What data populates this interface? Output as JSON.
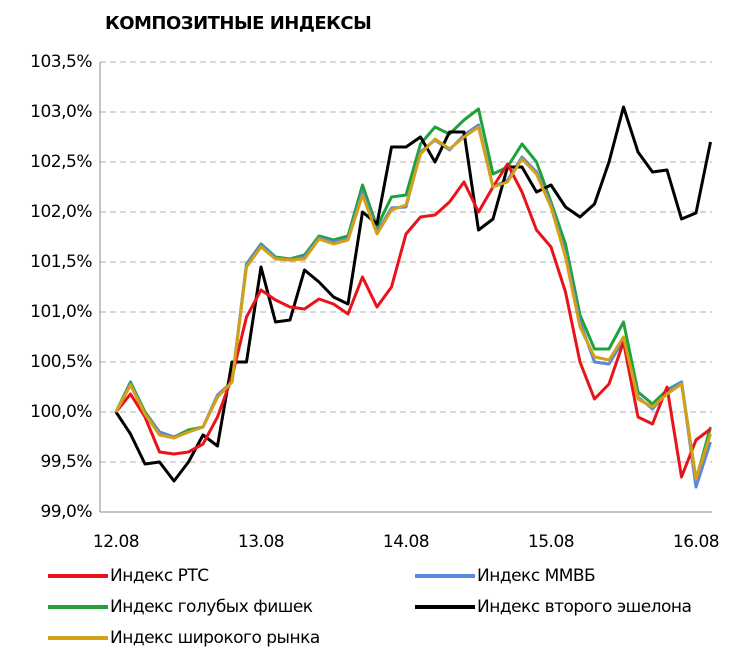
{
  "chart_data": {
    "type": "line",
    "title": "КОМПОЗИТНЫЕ  ИНДЕКСЫ",
    "categories": [
      "12.08",
      null,
      null,
      null,
      null,
      null,
      null,
      null,
      null,
      null,
      "13.08",
      null,
      null,
      null,
      null,
      null,
      null,
      null,
      null,
      null,
      "14.08",
      null,
      null,
      null,
      null,
      null,
      null,
      null,
      null,
      null,
      "15.08",
      null,
      null,
      null,
      null,
      null,
      null,
      null,
      null,
      null,
      "16.08",
      null
    ],
    "ylim": [
      99.0,
      103.5
    ],
    "yticks": [
      {
        "value": 99.0,
        "label": "99,0%"
      },
      {
        "value": 99.5,
        "label": "99,5%"
      },
      {
        "value": 100.0,
        "label": "100,0%"
      },
      {
        "value": 100.5,
        "label": "100,5%"
      },
      {
        "value": 101.0,
        "label": "101,0%"
      },
      {
        "value": 101.5,
        "label": "101,5%"
      },
      {
        "value": 102.0,
        "label": "102,0%"
      },
      {
        "value": 102.5,
        "label": "102,5%"
      },
      {
        "value": 103.0,
        "label": "103,0%"
      },
      {
        "value": 103.5,
        "label": "103,5%"
      }
    ],
    "grid": true,
    "legend": "bottom",
    "series": [
      {
        "name": "Индекс РТС",
        "color": "#e8141c",
        "values": [
          100.0,
          100.18,
          99.95,
          99.6,
          99.58,
          99.6,
          99.68,
          99.95,
          100.35,
          100.95,
          101.22,
          101.12,
          101.05,
          101.03,
          101.13,
          101.08,
          100.98,
          101.35,
          101.05,
          101.25,
          101.78,
          101.95,
          101.97,
          102.1,
          102.3,
          102.0,
          102.25,
          102.48,
          102.2,
          101.82,
          101.65,
          101.2,
          100.5,
          100.13,
          100.28,
          100.7,
          99.95,
          99.88,
          100.25,
          99.35,
          99.72,
          99.83
        ]
      },
      {
        "name": "Индекс ММВБ",
        "color": "#5b87e0",
        "values": [
          100.0,
          100.28,
          99.98,
          99.8,
          99.75,
          99.8,
          99.85,
          100.17,
          100.3,
          101.47,
          101.67,
          101.54,
          101.52,
          101.55,
          101.74,
          101.7,
          101.73,
          102.2,
          101.8,
          102.04,
          102.05,
          102.6,
          102.72,
          102.62,
          102.77,
          102.87,
          102.25,
          102.32,
          102.55,
          102.4,
          102.07,
          101.58,
          100.9,
          100.5,
          100.48,
          100.72,
          100.15,
          100.03,
          100.2,
          100.3,
          99.25,
          99.7
        ]
      },
      {
        "name": "Индекс голубых фишек",
        "color": "#1ea23c",
        "values": [
          100.0,
          100.3,
          100.0,
          99.8,
          99.75,
          99.82,
          99.85,
          100.15,
          100.3,
          101.48,
          101.68,
          101.55,
          101.53,
          101.57,
          101.76,
          101.72,
          101.76,
          102.27,
          101.85,
          102.15,
          102.17,
          102.68,
          102.85,
          102.78,
          102.92,
          103.03,
          102.38,
          102.45,
          102.68,
          102.5,
          102.1,
          101.68,
          100.97,
          100.63,
          100.63,
          100.9,
          100.2,
          100.08,
          100.22,
          100.3,
          99.32,
          99.85
        ]
      },
      {
        "name": "Индекс второго эшелона",
        "color": "#000000",
        "values": [
          100.0,
          99.78,
          99.48,
          99.5,
          99.31,
          99.5,
          99.77,
          99.66,
          100.5,
          100.5,
          101.45,
          100.9,
          100.92,
          101.42,
          101.3,
          101.15,
          101.08,
          102.0,
          101.88,
          102.65,
          102.65,
          102.75,
          102.5,
          102.8,
          102.8,
          101.82,
          101.93,
          102.45,
          102.45,
          102.2,
          102.27,
          102.05,
          101.95,
          102.08,
          102.5,
          103.05,
          102.6,
          102.4,
          102.42,
          101.93,
          101.99,
          102.7
        ]
      },
      {
        "name": "Индекс широкого рынка",
        "color": "#d4a017",
        "values": [
          100.0,
          100.27,
          99.98,
          99.77,
          99.74,
          99.8,
          99.85,
          100.15,
          100.3,
          101.45,
          101.65,
          101.53,
          101.52,
          101.53,
          101.73,
          101.68,
          101.72,
          102.17,
          101.78,
          102.02,
          102.07,
          102.58,
          102.73,
          102.63,
          102.75,
          102.85,
          102.25,
          102.3,
          102.53,
          102.38,
          102.05,
          101.55,
          100.85,
          100.55,
          100.52,
          100.75,
          100.13,
          100.05,
          100.18,
          100.28,
          99.33,
          99.78
        ]
      }
    ]
  }
}
